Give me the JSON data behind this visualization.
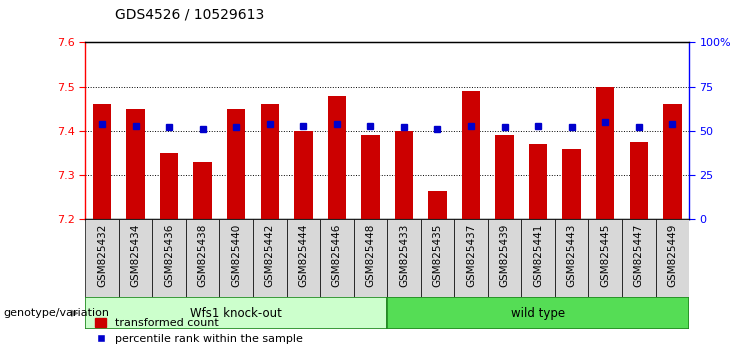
{
  "title": "GDS4526 / 10529613",
  "samples": [
    "GSM825432",
    "GSM825434",
    "GSM825436",
    "GSM825438",
    "GSM825440",
    "GSM825442",
    "GSM825444",
    "GSM825446",
    "GSM825448",
    "GSM825433",
    "GSM825435",
    "GSM825437",
    "GSM825439",
    "GSM825441",
    "GSM825443",
    "GSM825445",
    "GSM825447",
    "GSM825449"
  ],
  "red_values": [
    7.46,
    7.45,
    7.35,
    7.33,
    7.45,
    7.46,
    7.4,
    7.48,
    7.39,
    7.4,
    7.265,
    7.49,
    7.39,
    7.37,
    7.36,
    7.5,
    7.375,
    7.46
  ],
  "blue_values": [
    54,
    53,
    52,
    51,
    52,
    54,
    53,
    54,
    53,
    52,
    51,
    53,
    52,
    53,
    52,
    55,
    52,
    54
  ],
  "group1_label": "Wfs1 knock-out",
  "group2_label": "wild type",
  "group1_count": 9,
  "group2_count": 9,
  "ymin": 7.2,
  "ymax": 7.6,
  "y_ticks": [
    7.2,
    7.3,
    7.4,
    7.5,
    7.6
  ],
  "right_yticks": [
    0,
    25,
    50,
    75,
    100
  ],
  "right_yticklabels": [
    "0",
    "25",
    "50",
    "75",
    "100%"
  ],
  "bar_color": "#cc0000",
  "blue_color": "#0000cc",
  "group1_bg": "#ccffcc",
  "group2_bg": "#55dd55",
  "bar_bottom": 7.2,
  "genotype_label": "genotype/variation",
  "legend_red": "transformed count",
  "legend_blue": "percentile rank within the sample",
  "blue_marker_size": 5,
  "title_fontsize": 10,
  "tick_label_fontsize": 7.5,
  "axis_label_fontsize": 8
}
